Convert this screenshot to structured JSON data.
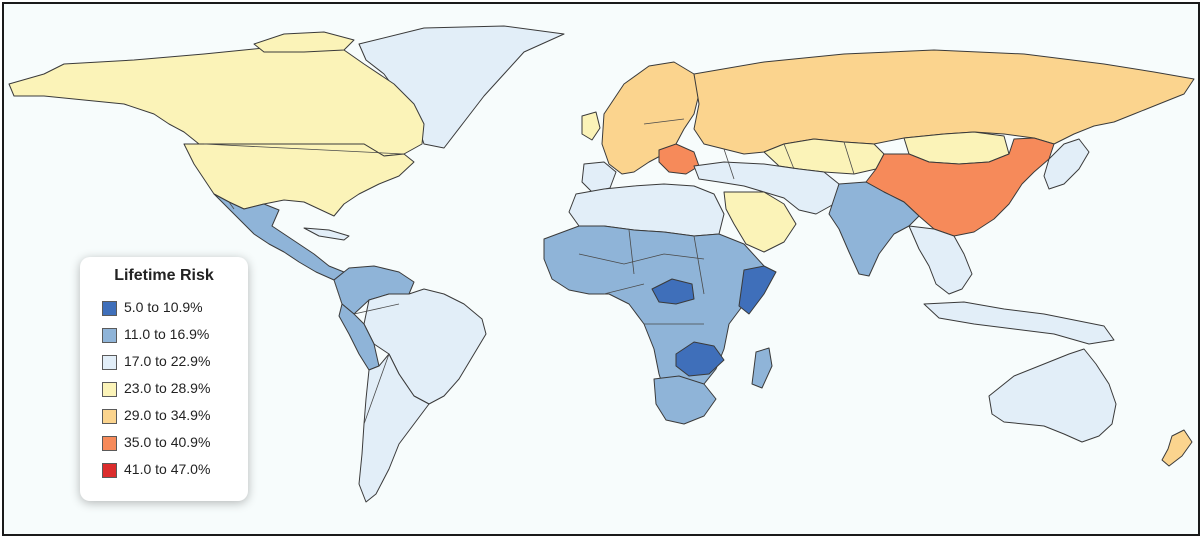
{
  "legend": {
    "title": "Lifetime Risk",
    "classes": [
      {
        "label": "5.0 to 10.9%",
        "color": "#3f6fba"
      },
      {
        "label": "11.0 to 16.9%",
        "color": "#8fb4d8"
      },
      {
        "label": "17.0 to 22.9%",
        "color": "#e2eef8"
      },
      {
        "label": "23.0 to 28.9%",
        "color": "#fbf3b8"
      },
      {
        "label": "29.0 to 34.9%",
        "color": "#fbd48e"
      },
      {
        "label": "35.0 to 40.9%",
        "color": "#f68a5a"
      },
      {
        "label": "41.0 to 47.0%",
        "color": "#db2c2c"
      }
    ]
  },
  "colors": {
    "ocean": "#f7fcfc",
    "border_stroke": "#3a3a3a"
  }
}
